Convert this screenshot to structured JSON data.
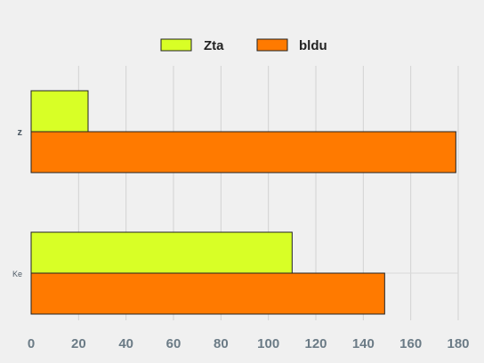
{
  "chart_data": {
    "type": "bar",
    "orientation": "horizontal",
    "categories": [
      "z",
      "Ke"
    ],
    "series": [
      {
        "name": "Zta",
        "values": [
          24,
          110
        ],
        "color": "#d8ff26"
      },
      {
        "name": "bldu",
        "values": [
          179,
          149
        ],
        "color": "#ff7a00"
      }
    ],
    "xlim": [
      0,
      180
    ],
    "xticks": [
      "0",
      "20",
      "40",
      "60",
      "80",
      "100",
      "120",
      "140",
      "160",
      "180"
    ],
    "grid": true,
    "legend_position": "top-center",
    "title": "",
    "xlabel": "",
    "ylabel": ""
  }
}
